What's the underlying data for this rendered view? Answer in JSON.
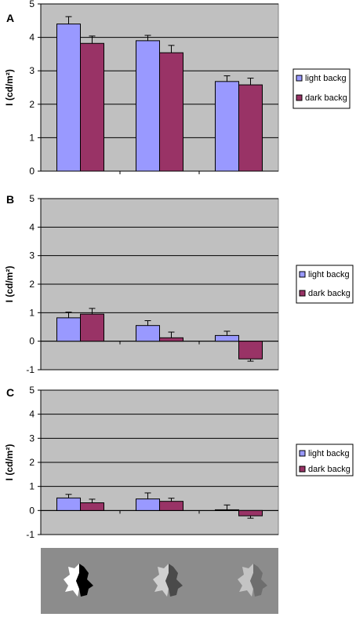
{
  "chart_data": [
    {
      "type": "bar",
      "panel_label": "A",
      "ylabel": "I (cd/m²)",
      "ylim": [
        0,
        5
      ],
      "yticks": [
        "0",
        "1",
        "2",
        "3",
        "4",
        "5"
      ],
      "categories": [
        "",
        "",
        ""
      ],
      "series": [
        {
          "name": "light backg",
          "color": "#9999FF",
          "values": [
            4.4,
            3.9,
            2.68
          ],
          "errors": [
            0.22,
            0.16,
            0.17
          ]
        },
        {
          "name": "dark backg",
          "color": "#993366",
          "values": [
            3.82,
            3.54,
            2.58
          ],
          "errors": [
            0.22,
            0.22,
            0.2
          ]
        }
      ],
      "grid": true,
      "legend": "right"
    },
    {
      "type": "bar",
      "panel_label": "B",
      "ylabel": "I (cd/m²)",
      "ylim": [
        -1,
        5
      ],
      "yticks": [
        "-1",
        "0",
        "1",
        "2",
        "3",
        "4",
        "5"
      ],
      "categories": [
        "",
        "",
        ""
      ],
      "series": [
        {
          "name": "light backg",
          "color": "#9999FF",
          "values": [
            0.82,
            0.55,
            0.2
          ],
          "errors": [
            0.2,
            0.17,
            0.15
          ]
        },
        {
          "name": "dark backg",
          "color": "#993366",
          "values": [
            0.95,
            0.12,
            -0.62
          ],
          "errors": [
            0.2,
            0.2,
            0.08
          ]
        }
      ],
      "grid": true,
      "legend": "right"
    },
    {
      "type": "bar",
      "panel_label": "C",
      "ylabel": "I (cd/m²)",
      "ylim": [
        -1,
        5
      ],
      "yticks": [
        "-1",
        "0",
        "1",
        "2",
        "3",
        "4",
        "5"
      ],
      "categories": [
        "",
        "",
        ""
      ],
      "series": [
        {
          "name": "light backg",
          "color": "#9999FF",
          "values": [
            0.52,
            0.48,
            0.03
          ],
          "errors": [
            0.15,
            0.25,
            0.2
          ]
        },
        {
          "name": "dark backg",
          "color": "#993366",
          "values": [
            0.32,
            0.38,
            -0.22
          ],
          "errors": [
            0.15,
            0.13,
            0.1
          ]
        }
      ],
      "grid": true,
      "legend": "right"
    }
  ],
  "stimulus": {
    "items": [
      {
        "name": "stimulus-high-contrast",
        "left_color": "#ffffff",
        "right_color": "#000000"
      },
      {
        "name": "stimulus-medium-contrast",
        "left_color": "#d0d0d0",
        "right_color": "#4a4a4a"
      },
      {
        "name": "stimulus-low-contrast",
        "left_color": "#c4c4c4",
        "right_color": "#6e6e6e"
      }
    ],
    "background_color": "#8c8c8c"
  }
}
